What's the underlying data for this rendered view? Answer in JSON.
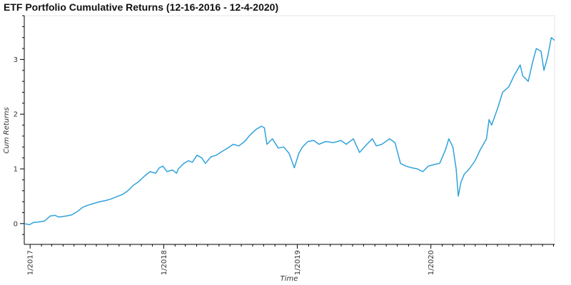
{
  "chart_data": {
    "type": "line",
    "title": "ETF Portfolio Cumulative Returns (12-16-2016 - 12-4-2020)",
    "xlabel": "Time",
    "ylabel": "Cum Returns",
    "x_start": "2016-12-16",
    "x_end": "2020-12-04",
    "xticks": [
      {
        "date": "2017-01-01",
        "label": "1/2017"
      },
      {
        "date": "2018-01-01",
        "label": "1/2018"
      },
      {
        "date": "2019-01-01",
        "label": "1/2019"
      },
      {
        "date": "2020-01-01",
        "label": "1/2020"
      }
    ],
    "yticks": [
      0,
      1,
      2,
      3
    ],
    "ylim": [
      -0.38,
      3.8
    ],
    "grid": false,
    "line_color": "#30a2da",
    "series": [
      {
        "x": [
          "2016-12-16",
          "2016-12-30",
          "2017-01-10",
          "2017-01-25",
          "2017-02-10",
          "2017-02-25",
          "2017-03-10",
          "2017-03-20",
          "2017-04-10",
          "2017-04-25",
          "2017-05-10",
          "2017-05-25",
          "2017-06-10",
          "2017-06-25",
          "2017-07-10",
          "2017-07-25",
          "2017-08-10",
          "2017-08-25",
          "2017-09-10",
          "2017-09-25",
          "2017-10-10",
          "2017-10-25",
          "2017-11-10",
          "2017-11-25",
          "2017-12-10",
          "2017-12-20",
          "2017-12-30",
          "2018-01-10",
          "2018-01-25",
          "2018-02-05",
          "2018-02-10",
          "2018-02-25",
          "2018-03-10",
          "2018-03-20",
          "2018-04-02",
          "2018-04-15",
          "2018-04-25",
          "2018-05-10",
          "2018-05-25",
          "2018-06-10",
          "2018-06-25",
          "2018-07-10",
          "2018-07-25",
          "2018-08-10",
          "2018-08-25",
          "2018-09-10",
          "2018-09-25",
          "2018-10-03",
          "2018-10-10",
          "2018-10-25",
          "2018-11-10",
          "2018-11-25",
          "2018-12-10",
          "2018-12-24",
          "2019-01-05",
          "2019-01-15",
          "2019-01-30",
          "2019-02-15",
          "2019-03-01",
          "2019-03-20",
          "2019-04-10",
          "2019-04-30",
          "2019-05-15",
          "2019-06-03",
          "2019-06-20",
          "2019-07-10",
          "2019-07-25",
          "2019-08-05",
          "2019-08-20",
          "2019-09-10",
          "2019-09-25",
          "2019-10-10",
          "2019-10-25",
          "2019-11-10",
          "2019-11-25",
          "2019-12-10",
          "2019-12-25",
          "2020-01-10",
          "2020-01-25",
          "2020-02-10",
          "2020-02-19",
          "2020-03-01",
          "2020-03-10",
          "2020-03-16",
          "2020-03-23",
          "2020-04-01",
          "2020-04-15",
          "2020-05-01",
          "2020-05-15",
          "2020-06-01",
          "2020-06-08",
          "2020-06-15",
          "2020-07-01",
          "2020-07-15",
          "2020-08-01",
          "2020-08-15",
          "2020-09-01",
          "2020-09-08",
          "2020-09-23",
          "2020-10-05",
          "2020-10-15",
          "2020-10-28",
          "2020-11-05",
          "2020-11-15",
          "2020-11-25",
          "2020-12-04"
        ],
        "values": [
          0.0,
          -0.02,
          0.02,
          0.03,
          0.05,
          0.14,
          0.15,
          0.12,
          0.14,
          0.16,
          0.22,
          0.3,
          0.34,
          0.37,
          0.4,
          0.42,
          0.45,
          0.49,
          0.53,
          0.6,
          0.7,
          0.77,
          0.87,
          0.95,
          0.92,
          1.02,
          1.05,
          0.95,
          0.98,
          0.92,
          1.0,
          1.1,
          1.15,
          1.12,
          1.25,
          1.2,
          1.1,
          1.22,
          1.25,
          1.32,
          1.38,
          1.45,
          1.42,
          1.5,
          1.62,
          1.72,
          1.78,
          1.75,
          1.45,
          1.55,
          1.38,
          1.4,
          1.28,
          1.02,
          1.28,
          1.4,
          1.5,
          1.52,
          1.45,
          1.5,
          1.48,
          1.52,
          1.45,
          1.55,
          1.3,
          1.45,
          1.55,
          1.42,
          1.45,
          1.55,
          1.48,
          1.1,
          1.05,
          1.02,
          1.0,
          0.95,
          1.05,
          1.08,
          1.1,
          1.35,
          1.55,
          1.4,
          1.0,
          0.5,
          0.75,
          0.9,
          1.0,
          1.15,
          1.35,
          1.55,
          1.9,
          1.8,
          2.1,
          2.4,
          2.5,
          2.7,
          2.9,
          2.7,
          2.6,
          2.95,
          3.2,
          3.15,
          2.8,
          3.05,
          3.4,
          3.35
        ]
      }
    ]
  }
}
